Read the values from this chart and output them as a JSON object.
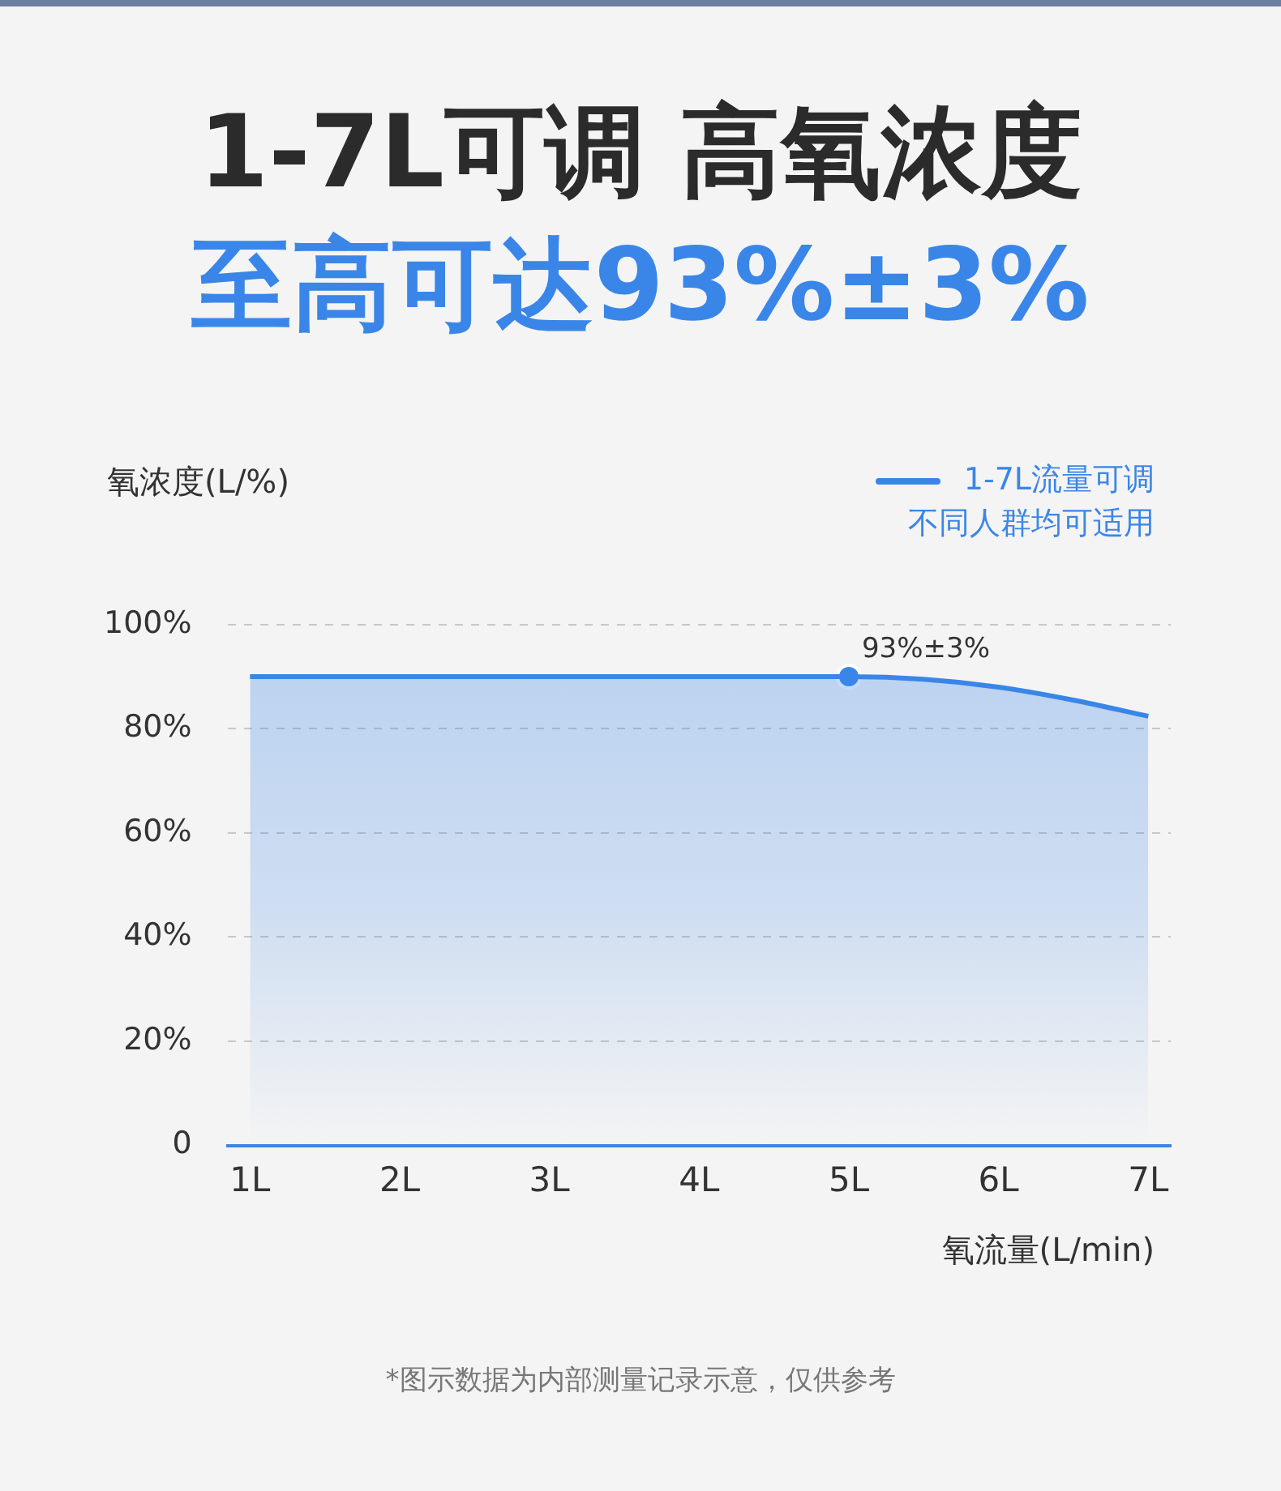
{
  "chart_data": {
    "type": "area",
    "title": "1-7L可调 高氧浓度",
    "subtitle": "至高可达93%±3%",
    "ylabel": "氧浓度(L/%)",
    "xlabel": "氧流量(L/min)",
    "series": [
      {
        "name": "1-7L流量可调不同人群均可适用",
        "color": "#3a86e8",
        "x": [
          1,
          2,
          3,
          4,
          5,
          5.5,
          6,
          6.5,
          7
        ],
        "values": [
          90,
          90,
          90,
          90,
          90,
          89.5,
          88,
          85.5,
          82.4
        ]
      },
      {
        "type": "scatter",
        "color": "#3a86e8",
        "marker": "circle",
        "x": [
          5
        ],
        "values": [
          90
        ]
      }
    ],
    "xlim": [
      0.85,
      7.15
    ],
    "xticks": [
      {
        "value": 1,
        "label": "1L"
      },
      {
        "value": 2,
        "label": "2L"
      },
      {
        "value": 3,
        "label": "3L"
      },
      {
        "value": 4,
        "label": "4L"
      },
      {
        "value": 5,
        "label": "5L"
      },
      {
        "value": 6,
        "label": "6L"
      },
      {
        "value": 7,
        "label": "7L"
      }
    ],
    "ylim": [
      0,
      100
    ],
    "yticks": [
      0,
      {
        "value": 20,
        "label": "20%"
      },
      {
        "value": 40,
        "label": "40%"
      },
      {
        "value": 60,
        "label": "60%"
      },
      {
        "value": 80,
        "label": "80%"
      },
      {
        "value": 100,
        "label": "100%"
      }
    ],
    "grid": "y",
    "legend": "top right",
    "annotations": [
      {
        "text": "93%±3%",
        "x": 5,
        "y": 90
      },
      "*图示数据为内部测量记录示意，仅供参考"
    ]
  }
}
